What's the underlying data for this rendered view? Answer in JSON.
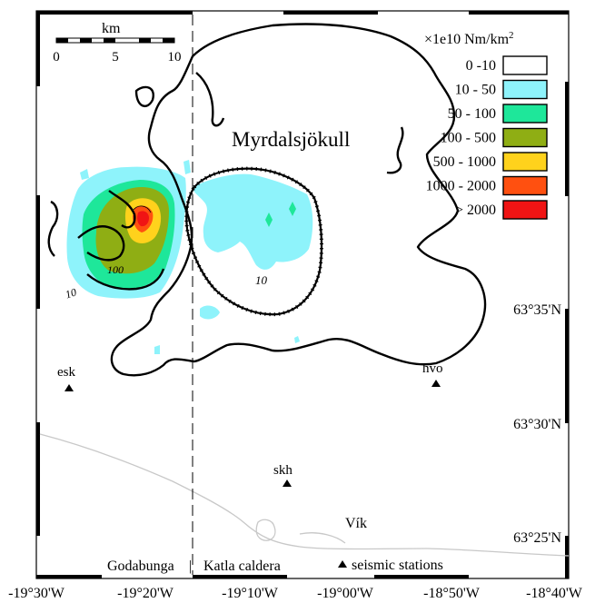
{
  "scale_bar": {
    "unit": "km",
    "ticks": [
      "0",
      "5",
      "10"
    ]
  },
  "legend": {
    "title_prefix": "×1e10 Nm/km",
    "title_sup": "2",
    "items": [
      {
        "label": "0 -10",
        "color": "#ffffff"
      },
      {
        "label": "10 - 50",
        "color": "#8ef3fb"
      },
      {
        "label": "50 - 100",
        "color": "#1ee79a"
      },
      {
        "label": "100 - 500",
        "color": "#8fae14"
      },
      {
        "label": "500 - 1000",
        "color": "#ffd21c"
      },
      {
        "label": "1000 - 2000",
        "color": "#ff5010"
      },
      {
        "label": "> 2000",
        "color": "#f01414"
      }
    ]
  },
  "places": {
    "glacier": "Myrdalsjökull",
    "town": "Vík",
    "west_region": "Godabunga",
    "east_region": "Katla caldera",
    "divider": "|"
  },
  "stations": {
    "legend_label": "seismic stations",
    "items": [
      "esk",
      "hvo",
      "skh"
    ]
  },
  "contour_labels": {
    "west_100": "100",
    "west_10": "10",
    "caldera_10": "10"
  },
  "latitude_labels": [
    "63°35'N",
    "63°30'N",
    "63°25'N"
  ],
  "longitude_labels": [
    "-19°30'W",
    "-19°20'W",
    "-19°10'W",
    "-19°00'W",
    "-18°50'W",
    "-18°40'W"
  ]
}
